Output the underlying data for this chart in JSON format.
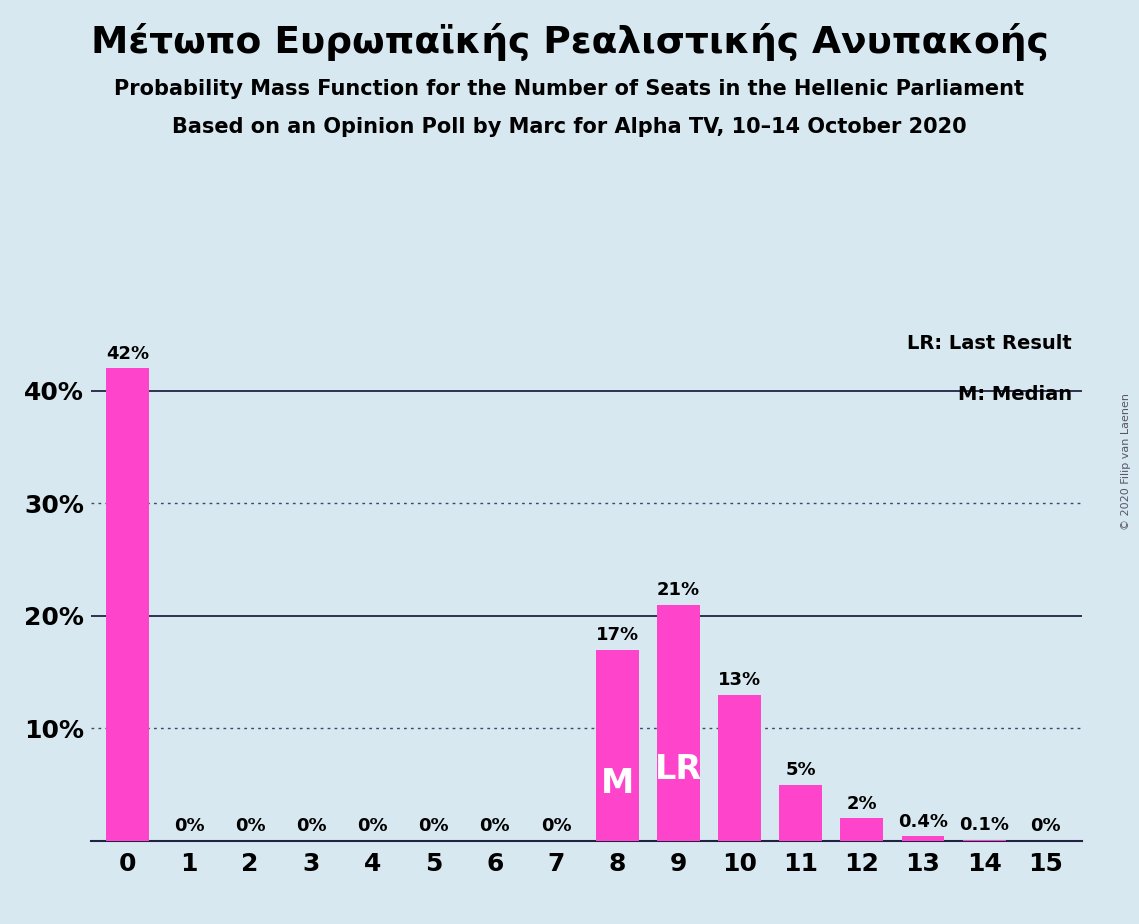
{
  "title": "Μέτωπο Ευρωπαϊκής Ρεαλιστικής Ανυπακοής",
  "subtitle1": "Probability Mass Function for the Number of Seats in the Hellenic Parliament",
  "subtitle2": "Based on an Opinion Poll by Marc for Alpha TV, 10–14 October 2020",
  "copyright": "© 2020 Filip van Laenen",
  "x_labels": [
    0,
    1,
    2,
    3,
    4,
    5,
    6,
    7,
    8,
    9,
    10,
    11,
    12,
    13,
    14,
    15
  ],
  "values": [
    0.42,
    0.0,
    0.0,
    0.0,
    0.0,
    0.0,
    0.0,
    0.0,
    0.17,
    0.21,
    0.13,
    0.05,
    0.02,
    0.004,
    0.001,
    0.0
  ],
  "bar_labels": [
    "42%",
    "0%",
    "0%",
    "0%",
    "0%",
    "0%",
    "0%",
    "0%",
    "17%",
    "21%",
    "13%",
    "5%",
    "2%",
    "0.4%",
    "0.1%",
    "0%"
  ],
  "bar_color": "#FF44CC",
  "background_color": "#D8E8F0",
  "median_bar": 8,
  "last_result_bar": 9,
  "median_label": "M",
  "last_result_label": "LR",
  "legend_lr": "LR: Last Result",
  "legend_m": "M: Median",
  "ylim": [
    0,
    0.46
  ],
  "yticks": [
    0.0,
    0.1,
    0.2,
    0.3,
    0.4
  ],
  "ytick_labels": [
    "",
    "10%",
    "20%",
    "30%",
    "40%"
  ],
  "solid_gridlines": [
    0.2,
    0.4
  ],
  "dotted_gridlines": [
    0.1,
    0.3
  ]
}
